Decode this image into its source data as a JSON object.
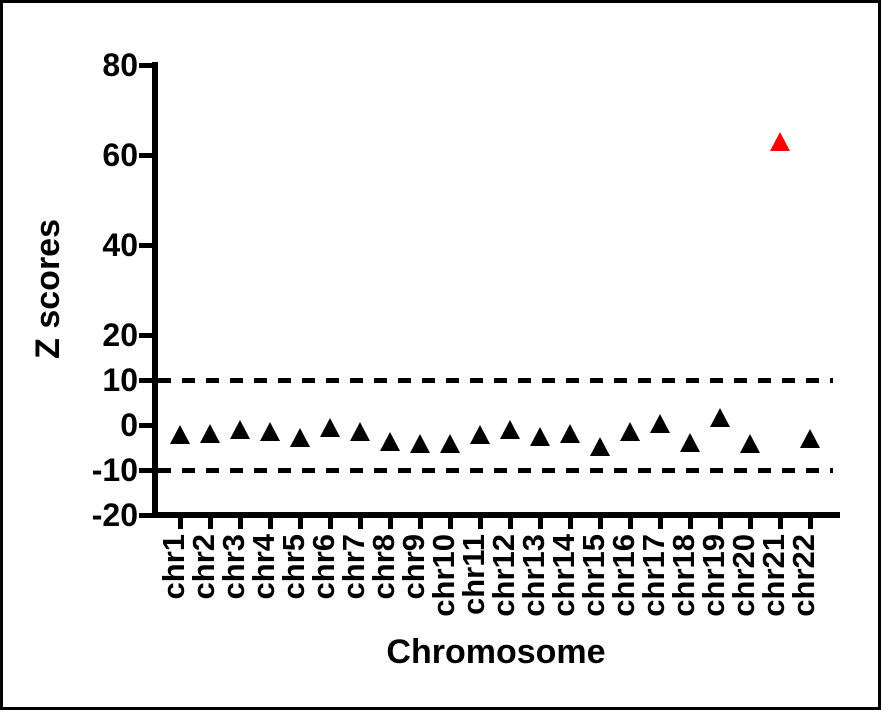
{
  "figure": {
    "background": "#FFFFFF",
    "frame_border_color": "#000000"
  },
  "chart_data": {
    "type": "scatter",
    "marker_shape": "triangle-up",
    "xlabel": "Chromosome",
    "ylabel": "Z scores",
    "categories": [
      "chr1",
      "chr2",
      "chr3",
      "chr4",
      "chr5",
      "chr6",
      "chr7",
      "chr8",
      "chr9",
      "chr10",
      "chr11",
      "chr12",
      "chr13",
      "chr14",
      "chr15",
      "chr16",
      "chr17",
      "chr18",
      "chr19",
      "chr20",
      "chr21",
      "chr22"
    ],
    "values": [
      -2.0,
      -1.9,
      -1.1,
      -1.5,
      -2.8,
      -0.5,
      -1.4,
      -3.7,
      -4.2,
      -4.1,
      -2.2,
      -1.1,
      -2.5,
      -1.9,
      -4.7,
      -1.5,
      0.4,
      -3.8,
      1.7,
      -4.0,
      63,
      -2.9
    ],
    "point_color_default": "#000000",
    "highlight": {
      "category": "chr21",
      "value": 63,
      "color": "#FF0000"
    },
    "threshold_lines": {
      "values": [
        10,
        -10
      ],
      "style": "dashed",
      "color": "#000000"
    },
    "yticks": [
      80,
      60,
      40,
      20,
      10,
      0,
      -10,
      -20
    ],
    "ylim": [
      -20,
      80
    ],
    "grid": false,
    "legend": false
  }
}
